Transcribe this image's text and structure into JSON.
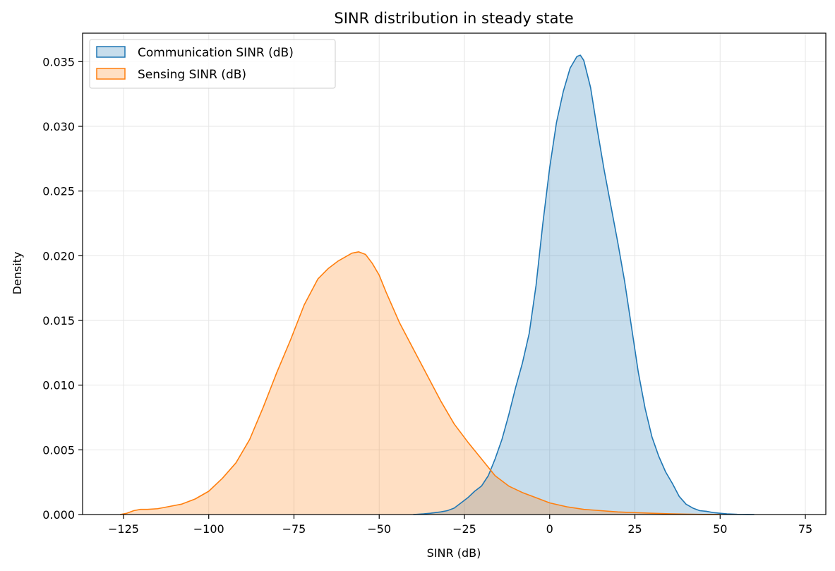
{
  "chart_data": {
    "type": "area",
    "title": "SINR distribution in steady state",
    "xlabel": "SINR (dB)",
    "ylabel": "Density",
    "xlim": [
      -137,
      81
    ],
    "ylim": [
      0,
      0.0372
    ],
    "xticks": [
      -125,
      -100,
      -75,
      -50,
      -25,
      0,
      25,
      50,
      75
    ],
    "xtick_labels": [
      "−125",
      "−100",
      "−75",
      "−50",
      "−25",
      "0",
      "25",
      "50",
      "75"
    ],
    "yticks": [
      0,
      0.005,
      0.01,
      0.015,
      0.02,
      0.025,
      0.03,
      0.035
    ],
    "ytick_labels": [
      "0.000",
      "0.005",
      "0.010",
      "0.015",
      "0.020",
      "0.025",
      "0.030",
      "0.035"
    ],
    "grid": true,
    "legend_position": "top-left",
    "series": [
      {
        "name": "Communication SINR (dB)",
        "color": "#1f77b4",
        "fill": "#1f77b4",
        "x": [
          -40,
          -37,
          -35,
          -32,
          -30,
          -28,
          -26,
          -24,
          -22,
          -20,
          -18,
          -16,
          -14,
          -12,
          -10,
          -8,
          -6,
          -4,
          -2,
          0,
          2,
          4,
          6,
          8,
          9,
          10,
          12,
          14,
          16,
          18,
          20,
          22,
          24,
          26,
          28,
          30,
          32,
          34,
          36,
          38,
          40,
          42,
          44,
          46,
          48,
          50,
          52,
          55,
          58,
          60
        ],
        "y": [
          0.0,
          5e-05,
          0.0001,
          0.0002,
          0.0003,
          0.0005,
          0.0009,
          0.0013,
          0.0018,
          0.0022,
          0.003,
          0.0043,
          0.0058,
          0.0077,
          0.0098,
          0.0117,
          0.014,
          0.0177,
          0.0225,
          0.0268,
          0.0303,
          0.0327,
          0.0345,
          0.0354,
          0.0355,
          0.0351,
          0.033,
          0.0297,
          0.0266,
          0.0238,
          0.021,
          0.018,
          0.0145,
          0.011,
          0.0082,
          0.006,
          0.0045,
          0.0033,
          0.0024,
          0.0014,
          0.0008,
          0.0005,
          0.0003,
          0.00025,
          0.00015,
          0.0001,
          5e-05,
          2e-05,
          1e-05,
          0.0
        ]
      },
      {
        "name": "Sensing SINR (dB)",
        "color": "#ff7f0e",
        "fill": "#ff7f0e",
        "x": [
          -126,
          -124,
          -122,
          -120,
          -118,
          -115,
          -112,
          -108,
          -104,
          -100,
          -96,
          -92,
          -88,
          -84,
          -80,
          -76,
          -72,
          -68,
          -65,
          -62,
          -60,
          -58,
          -56,
          -54,
          -52,
          -50,
          -48,
          -46,
          -44,
          -42,
          -40,
          -36,
          -32,
          -28,
          -24,
          -20,
          -16,
          -12,
          -8,
          -4,
          0,
          5,
          10,
          15,
          20,
          25,
          30,
          35,
          40,
          45,
          50
        ],
        "y": [
          0.0,
          0.0001,
          0.0003,
          0.0004,
          0.0004,
          0.00045,
          0.0006,
          0.0008,
          0.0012,
          0.0018,
          0.0028,
          0.004,
          0.0058,
          0.0083,
          0.011,
          0.0135,
          0.0162,
          0.0182,
          0.019,
          0.0196,
          0.0199,
          0.0202,
          0.0203,
          0.0201,
          0.0194,
          0.0185,
          0.0172,
          0.016,
          0.0148,
          0.0138,
          0.0128,
          0.0108,
          0.0088,
          0.007,
          0.0056,
          0.0043,
          0.003,
          0.0022,
          0.0017,
          0.0013,
          0.0009,
          0.0006,
          0.0004,
          0.0003,
          0.0002,
          0.00015,
          0.0001,
          6e-05,
          3e-05,
          1e-05,
          0.0
        ]
      }
    ]
  }
}
